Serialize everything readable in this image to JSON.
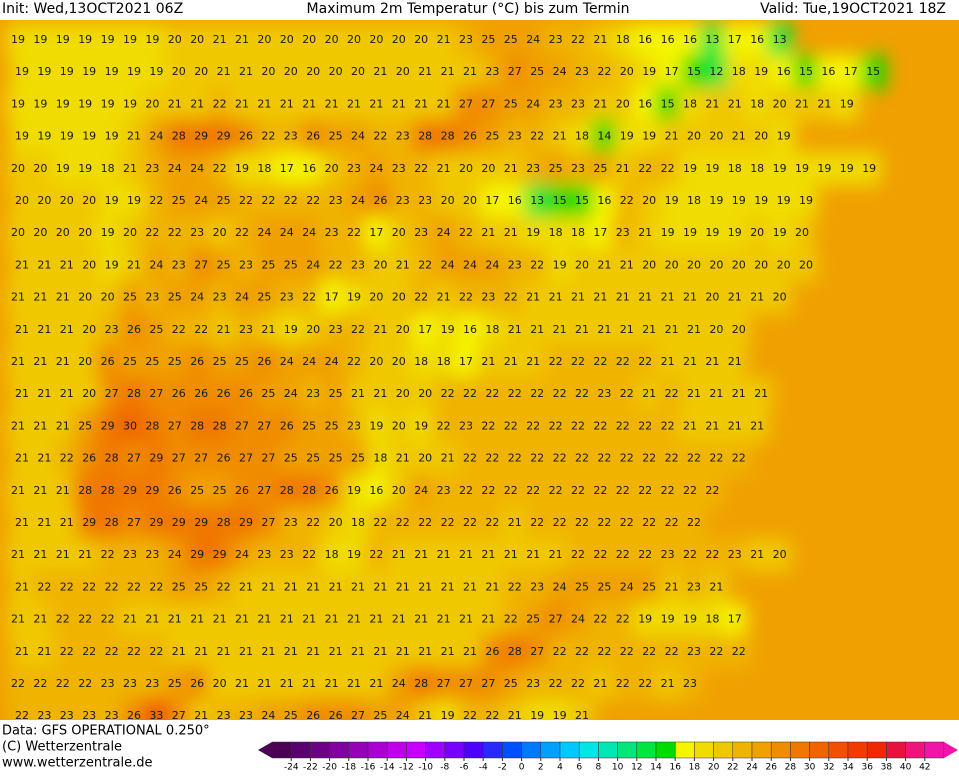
{
  "header": {
    "init": "Init: Wed,13OCT2021 06Z",
    "title": "Maximum 2m Temperatur (°C) bis zum Termin",
    "valid": "Valid: Tue,19OCT2021 18Z"
  },
  "footer": {
    "data": "Data: GFS OPERATIONAL 0.250°",
    "copyright": "(C) Wetterzentrale",
    "url": "www.wetterzentrale.de"
  },
  "map": {
    "rows": [
      [
        19,
        19,
        19,
        19,
        19,
        19,
        19,
        20,
        20,
        21,
        21,
        20,
        20,
        20,
        20,
        20,
        20,
        20,
        20,
        21,
        23,
        25,
        25,
        24,
        23,
        22,
        21,
        18,
        16,
        16,
        16,
        13,
        17,
        16,
        13
      ],
      [
        19,
        19,
        19,
        19,
        19,
        19,
        19,
        20,
        20,
        21,
        21,
        20,
        20,
        20,
        20,
        20,
        21,
        20,
        21,
        21,
        21,
        23,
        27,
        25,
        24,
        23,
        22,
        20,
        19,
        17,
        15,
        12,
        18,
        19,
        16,
        15,
        16,
        17,
        15
      ],
      [
        19,
        19,
        19,
        19,
        19,
        19,
        20,
        21,
        21,
        22,
        21,
        21,
        21,
        21,
        21,
        21,
        21,
        21,
        21,
        21,
        27,
        27,
        25,
        24,
        23,
        23,
        21,
        20,
        16,
        15,
        18,
        21,
        21,
        18,
        20,
        21,
        21,
        19
      ],
      [
        19,
        19,
        19,
        19,
        19,
        21,
        24,
        28,
        29,
        29,
        26,
        22,
        23,
        26,
        25,
        24,
        22,
        23,
        28,
        28,
        26,
        25,
        23,
        22,
        21,
        18,
        14,
        19,
        19,
        21,
        20,
        20,
        21,
        20,
        19
      ],
      [
        20,
        20,
        19,
        19,
        18,
        21,
        23,
        24,
        24,
        22,
        19,
        18,
        17,
        16,
        20,
        23,
        24,
        23,
        22,
        21,
        20,
        20,
        21,
        23,
        25,
        23,
        25,
        21,
        22,
        22,
        19,
        19,
        18,
        18,
        19,
        19,
        19,
        19,
        19
      ],
      [
        20,
        20,
        20,
        20,
        19,
        19,
        22,
        25,
        24,
        25,
        22,
        22,
        22,
        22,
        23,
        24,
        26,
        23,
        23,
        20,
        20,
        17,
        16,
        13,
        15,
        15,
        16,
        22,
        20,
        19,
        18,
        19,
        19,
        19,
        19,
        19
      ],
      [
        20,
        20,
        20,
        20,
        19,
        20,
        22,
        22,
        23,
        20,
        22,
        24,
        24,
        24,
        23,
        22,
        17,
        20,
        23,
        24,
        22,
        21,
        21,
        19,
        18,
        18,
        17,
        23,
        21,
        19,
        19,
        19,
        19,
        20,
        19,
        20
      ],
      [
        21,
        21,
        21,
        20,
        19,
        21,
        24,
        23,
        27,
        25,
        23,
        25,
        25,
        24,
        22,
        23,
        20,
        21,
        22,
        24,
        24,
        24,
        23,
        22,
        19,
        20,
        21,
        21,
        20,
        20,
        20,
        20,
        20,
        20,
        20,
        20
      ],
      [
        21,
        21,
        21,
        20,
        20,
        25,
        23,
        25,
        24,
        23,
        24,
        25,
        23,
        22,
        17,
        19,
        20,
        20,
        22,
        21,
        22,
        23,
        22,
        21,
        21,
        21,
        21,
        21,
        21,
        21,
        21,
        20,
        21,
        21,
        20
      ],
      [
        21,
        21,
        21,
        20,
        23,
        26,
        25,
        22,
        22,
        21,
        23,
        21,
        19,
        20,
        23,
        22,
        21,
        20,
        17,
        19,
        16,
        18,
        21,
        21,
        21,
        21,
        21,
        21,
        21,
        21,
        21,
        20,
        20
      ],
      [
        21,
        21,
        21,
        20,
        26,
        25,
        25,
        25,
        26,
        25,
        25,
        26,
        24,
        24,
        24,
        22,
        20,
        20,
        18,
        18,
        17,
        21,
        21,
        21,
        22,
        22,
        22,
        22,
        22,
        21,
        21,
        21,
        21
      ],
      [
        21,
        21,
        21,
        20,
        27,
        28,
        27,
        26,
        26,
        26,
        26,
        25,
        24,
        23,
        25,
        21,
        21,
        20,
        20,
        22,
        22,
        22,
        22,
        22,
        22,
        22,
        23,
        22,
        21,
        22,
        21,
        21,
        21,
        21
      ],
      [
        21,
        21,
        21,
        25,
        29,
        30,
        28,
        27,
        28,
        28,
        27,
        27,
        26,
        25,
        25,
        23,
        19,
        20,
        19,
        22,
        23,
        22,
        22,
        22,
        22,
        22,
        22,
        22,
        22,
        22,
        21,
        21,
        21,
        21
      ],
      [
        21,
        21,
        22,
        26,
        28,
        27,
        29,
        27,
        27,
        26,
        27,
        27,
        25,
        25,
        25,
        25,
        18,
        21,
        20,
        21,
        22,
        22,
        22,
        22,
        22,
        22,
        22,
        22,
        22,
        22,
        22,
        22,
        22
      ],
      [
        21,
        21,
        21,
        28,
        28,
        29,
        29,
        26,
        25,
        25,
        26,
        27,
        28,
        28,
        26,
        19,
        16,
        20,
        24,
        23,
        22,
        22,
        22,
        22,
        22,
        22,
        22,
        22,
        22,
        22,
        22,
        22
      ],
      [
        21,
        21,
        21,
        29,
        28,
        27,
        29,
        29,
        29,
        28,
        29,
        27,
        23,
        22,
        20,
        18,
        22,
        22,
        22,
        22,
        22,
        22,
        21,
        22,
        22,
        22,
        22,
        22,
        22,
        22,
        22
      ],
      [
        21,
        21,
        21,
        21,
        22,
        23,
        23,
        24,
        29,
        29,
        24,
        23,
        23,
        22,
        18,
        19,
        22,
        21,
        21,
        21,
        21,
        21,
        21,
        21,
        21,
        22,
        22,
        22,
        22,
        23,
        22,
        22,
        23,
        21,
        20
      ],
      [
        21,
        22,
        22,
        22,
        22,
        22,
        22,
        25,
        25,
        22,
        21,
        21,
        21,
        21,
        21,
        21,
        21,
        21,
        21,
        21,
        21,
        21,
        22,
        23,
        24,
        25,
        25,
        24,
        25,
        21,
        23,
        21
      ],
      [
        21,
        21,
        22,
        22,
        22,
        21,
        21,
        21,
        21,
        21,
        21,
        21,
        21,
        21,
        21,
        21,
        21,
        21,
        21,
        21,
        21,
        21,
        22,
        25,
        27,
        24,
        22,
        22,
        19,
        19,
        19,
        18,
        17
      ],
      [
        21,
        21,
        22,
        22,
        22,
        22,
        22,
        21,
        21,
        21,
        21,
        21,
        21,
        21,
        21,
        21,
        21,
        21,
        21,
        21,
        21,
        26,
        28,
        27,
        22,
        22,
        22,
        22,
        22,
        22,
        23,
        22,
        22
      ],
      [
        22,
        22,
        22,
        22,
        23,
        23,
        23,
        25,
        26,
        20,
        21,
        21,
        21,
        21,
        21,
        21,
        21,
        24,
        28,
        27,
        27,
        27,
        25,
        23,
        22,
        22,
        21,
        22,
        22,
        21,
        23
      ],
      [
        22,
        23,
        23,
        23,
        23,
        26,
        33,
        27,
        21,
        23,
        23,
        24,
        25,
        26,
        26,
        27,
        25,
        24,
        21,
        19,
        22,
        22,
        21,
        19,
        19,
        21
      ]
    ]
  },
  "colorbar": {
    "labels": [
      -24,
      -22,
      -20,
      -18,
      -16,
      -14,
      -12,
      -10,
      -8,
      -6,
      -4,
      -2,
      0,
      2,
      4,
      6,
      8,
      10,
      12,
      14,
      16,
      18,
      20,
      22,
      24,
      26,
      28,
      30,
      32,
      34,
      36,
      38,
      40,
      42
    ],
    "colors": [
      "#4b0055",
      "#5a006e",
      "#6e0087",
      "#8200a0",
      "#9600b9",
      "#aa00d2",
      "#be00eb",
      "#c800ff",
      "#a000ff",
      "#7800ff",
      "#5000ff",
      "#2828ff",
      "#0050ff",
      "#0078ff",
      "#00a0ff",
      "#00c8ff",
      "#00e6e6",
      "#00e6b4",
      "#00e678",
      "#00e63c",
      "#00dc00",
      "#f5f500",
      "#f0dc00",
      "#f0c800",
      "#f0b400",
      "#f0a000",
      "#f08c00",
      "#f07800",
      "#f06400",
      "#f05000",
      "#f03c00",
      "#f02800",
      "#e6143c",
      "#f0147a",
      "#f014aa"
    ]
  }
}
